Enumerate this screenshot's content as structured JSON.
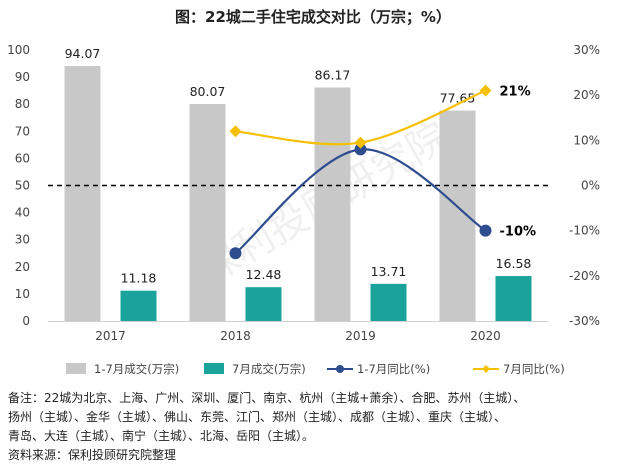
{
  "title": "图：22城二手住宅成交对比（万宗；%）",
  "watermark": "保利投顾研究院",
  "chart_data": {
    "type": "bar",
    "categories": [
      "2017",
      "2018",
      "2019",
      "2020"
    ],
    "series": [
      {
        "name": "1-7月成交(万宗)",
        "kind": "bar",
        "axis": "left",
        "color": "#c8c8c8",
        "values": [
          94.07,
          80.07,
          86.17,
          77.65
        ],
        "labels": [
          "94.07",
          "80.07",
          "86.17",
          "77.65"
        ]
      },
      {
        "name": "7月成交(万宗)",
        "kind": "bar",
        "axis": "left",
        "color": "#1aa39a",
        "values": [
          11.18,
          12.48,
          13.71,
          16.58
        ],
        "labels": [
          "11.18",
          "12.48",
          "13.71",
          "16.58"
        ]
      },
      {
        "name": "1-7月同比(%)",
        "kind": "line",
        "axis": "right",
        "color": "#2e4d8f",
        "values": [
          null,
          -15,
          8,
          -10
        ],
        "labels": [
          null,
          null,
          null,
          "-10%"
        ]
      },
      {
        "name": "7月同比(%)",
        "kind": "line",
        "axis": "right",
        "color": "#f5c000",
        "values": [
          null,
          12,
          9.5,
          21
        ],
        "labels": [
          null,
          null,
          null,
          "21%"
        ]
      }
    ],
    "left_axis": {
      "min": 0,
      "max": 100,
      "ticks": [
        "0",
        "10",
        "20",
        "30",
        "40",
        "50",
        "60",
        "70",
        "80",
        "90",
        "100"
      ]
    },
    "right_axis": {
      "min": -30,
      "max": 30,
      "ticks": [
        "-30%",
        "-20%",
        "-10%",
        "0%",
        "10%",
        "20%",
        "30%"
      ]
    },
    "reference_line": {
      "axis": "right",
      "value": 0,
      "style": "dashed"
    },
    "legend_position": "bottom"
  },
  "notes": [
    "备注：22城为北京、上海、广州、深圳、厦门、南京、杭州（主城+萧余）、合肥、苏州（主城）、",
    "扬州（主城）、金华（主城）、佛山、东莞、江门、郑州（主城）、成都（主城）、重庆（主城）、",
    "青岛、大连（主城）、南宁（主城）、北海、岳阳（主城）。",
    "资料来源：保利投顾研究院整理"
  ]
}
